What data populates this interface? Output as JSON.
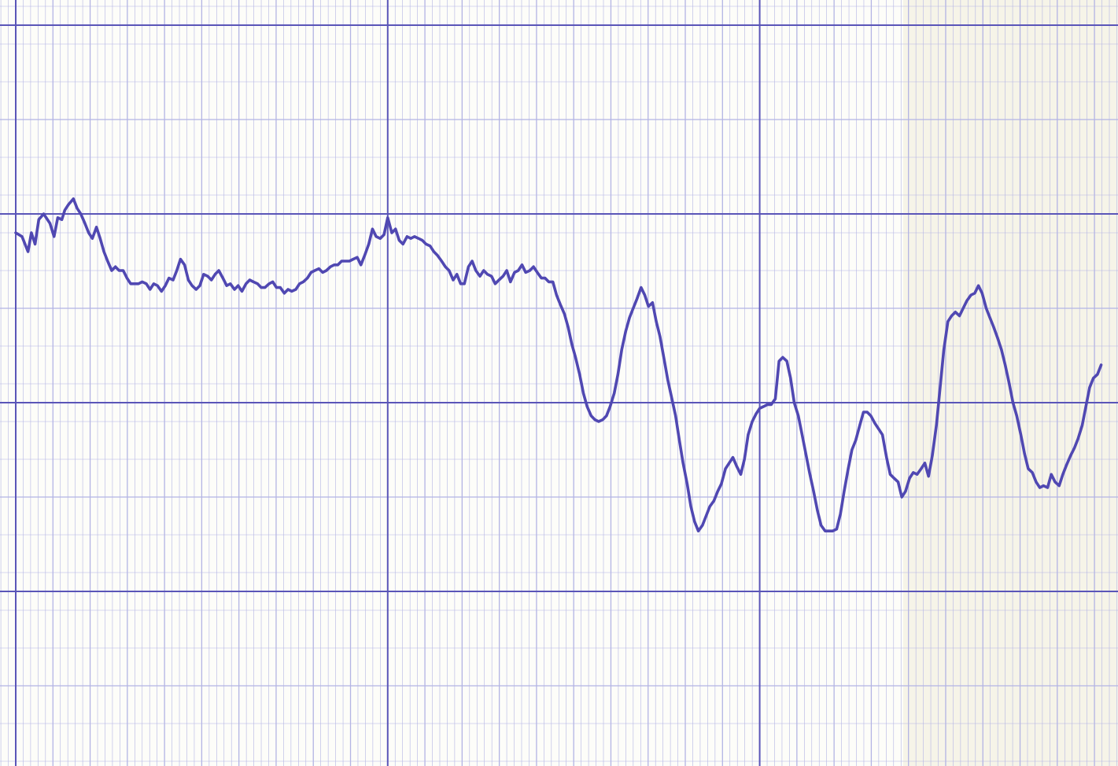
{
  "chart_data": {
    "type": "line",
    "title": "",
    "xlabel": "",
    "ylabel": "",
    "grid": true,
    "xlim": [
      0,
      29.4
    ],
    "ylim": [
      -3.9,
      0.1
    ],
    "colors": {
      "paper": "#fdfdf9",
      "paper_shaded": "#f6f4e8",
      "major_grid": "#5a55b8",
      "minor_grid": "#b3b4e4",
      "trace": "#5048b2"
    },
    "series": [
      {
        "values": [
          [
            0.0,
            -1.1
          ],
          [
            0.17,
            -1.12
          ],
          [
            0.33,
            -1.2
          ],
          [
            0.42,
            -1.1
          ],
          [
            0.52,
            -1.16
          ],
          [
            0.62,
            -1.03
          ],
          [
            0.75,
            -1.0
          ],
          [
            0.92,
            -1.05
          ],
          [
            1.03,
            -1.12
          ],
          [
            1.13,
            -1.02
          ],
          [
            1.24,
            -1.03
          ],
          [
            1.32,
            -0.98
          ],
          [
            1.42,
            -0.95
          ],
          [
            1.55,
            -0.92
          ],
          [
            1.65,
            -0.97
          ],
          [
            1.75,
            -1.0
          ],
          [
            1.86,
            -1.05
          ],
          [
            1.96,
            -1.1
          ],
          [
            2.06,
            -1.13
          ],
          [
            2.17,
            -1.07
          ],
          [
            2.27,
            -1.13
          ],
          [
            2.37,
            -1.2
          ],
          [
            2.47,
            -1.25
          ],
          [
            2.58,
            -1.3
          ],
          [
            2.68,
            -1.28
          ],
          [
            2.78,
            -1.3
          ],
          [
            2.89,
            -1.3
          ],
          [
            2.99,
            -1.34
          ],
          [
            3.09,
            -1.37
          ],
          [
            3.2,
            -1.37
          ],
          [
            3.3,
            -1.37
          ],
          [
            3.4,
            -1.36
          ],
          [
            3.51,
            -1.37
          ],
          [
            3.61,
            -1.4
          ],
          [
            3.71,
            -1.37
          ],
          [
            3.81,
            -1.38
          ],
          [
            3.92,
            -1.41
          ],
          [
            4.02,
            -1.38
          ],
          [
            4.12,
            -1.34
          ],
          [
            4.23,
            -1.35
          ],
          [
            4.33,
            -1.3
          ],
          [
            4.43,
            -1.24
          ],
          [
            4.54,
            -1.27
          ],
          [
            4.64,
            -1.35
          ],
          [
            4.74,
            -1.38
          ],
          [
            4.85,
            -1.4
          ],
          [
            4.95,
            -1.38
          ],
          [
            5.05,
            -1.32
          ],
          [
            5.16,
            -1.33
          ],
          [
            5.26,
            -1.35
          ],
          [
            5.36,
            -1.32
          ],
          [
            5.46,
            -1.3
          ],
          [
            5.57,
            -1.34
          ],
          [
            5.67,
            -1.38
          ],
          [
            5.77,
            -1.37
          ],
          [
            5.88,
            -1.4
          ],
          [
            5.98,
            -1.38
          ],
          [
            6.08,
            -1.41
          ],
          [
            6.19,
            -1.37
          ],
          [
            6.29,
            -1.35
          ],
          [
            6.39,
            -1.36
          ],
          [
            6.5,
            -1.37
          ],
          [
            6.6,
            -1.39
          ],
          [
            6.7,
            -1.39
          ],
          [
            6.81,
            -1.37
          ],
          [
            6.91,
            -1.36
          ],
          [
            7.01,
            -1.39
          ],
          [
            7.11,
            -1.39
          ],
          [
            7.22,
            -1.42
          ],
          [
            7.32,
            -1.4
          ],
          [
            7.42,
            -1.41
          ],
          [
            7.53,
            -1.4
          ],
          [
            7.63,
            -1.37
          ],
          [
            7.73,
            -1.36
          ],
          [
            7.84,
            -1.34
          ],
          [
            7.94,
            -1.31
          ],
          [
            8.04,
            -1.3
          ],
          [
            8.15,
            -1.29
          ],
          [
            8.25,
            -1.31
          ],
          [
            8.35,
            -1.3
          ],
          [
            8.46,
            -1.28
          ],
          [
            8.56,
            -1.27
          ],
          [
            8.66,
            -1.27
          ],
          [
            8.76,
            -1.25
          ],
          [
            8.87,
            -1.25
          ],
          [
            8.97,
            -1.25
          ],
          [
            9.07,
            -1.24
          ],
          [
            9.18,
            -1.23
          ],
          [
            9.28,
            -1.27
          ],
          [
            9.38,
            -1.22
          ],
          [
            9.49,
            -1.16
          ],
          [
            9.59,
            -1.08
          ],
          [
            9.69,
            -1.12
          ],
          [
            9.8,
            -1.13
          ],
          [
            9.9,
            -1.11
          ],
          [
            10.0,
            -1.02
          ],
          [
            10.11,
            -1.1
          ],
          [
            10.21,
            -1.08
          ],
          [
            10.31,
            -1.14
          ],
          [
            10.41,
            -1.16
          ],
          [
            10.52,
            -1.12
          ],
          [
            10.62,
            -1.13
          ],
          [
            10.72,
            -1.12
          ],
          [
            10.83,
            -1.13
          ],
          [
            10.93,
            -1.14
          ],
          [
            11.03,
            -1.16
          ],
          [
            11.14,
            -1.17
          ],
          [
            11.24,
            -1.2
          ],
          [
            11.34,
            -1.22
          ],
          [
            11.45,
            -1.25
          ],
          [
            11.55,
            -1.28
          ],
          [
            11.65,
            -1.3
          ],
          [
            11.76,
            -1.35
          ],
          [
            11.86,
            -1.32
          ],
          [
            11.96,
            -1.37
          ],
          [
            12.06,
            -1.37
          ],
          [
            12.17,
            -1.28
          ],
          [
            12.27,
            -1.25
          ],
          [
            12.37,
            -1.3
          ],
          [
            12.48,
            -1.33
          ],
          [
            12.58,
            -1.3
          ],
          [
            12.68,
            -1.32
          ],
          [
            12.79,
            -1.33
          ],
          [
            12.89,
            -1.37
          ],
          [
            12.99,
            -1.35
          ],
          [
            13.1,
            -1.33
          ],
          [
            13.2,
            -1.3
          ],
          [
            13.3,
            -1.36
          ],
          [
            13.41,
            -1.31
          ],
          [
            13.51,
            -1.3
          ],
          [
            13.61,
            -1.27
          ],
          [
            13.71,
            -1.31
          ],
          [
            13.82,
            -1.3
          ],
          [
            13.92,
            -1.28
          ],
          [
            14.02,
            -1.31
          ],
          [
            14.13,
            -1.34
          ],
          [
            14.23,
            -1.34
          ],
          [
            14.33,
            -1.36
          ],
          [
            14.44,
            -1.36
          ],
          [
            14.54,
            -1.43
          ],
          [
            14.64,
            -1.48
          ],
          [
            14.75,
            -1.53
          ],
          [
            14.85,
            -1.6
          ],
          [
            14.95,
            -1.69
          ],
          [
            15.05,
            -1.76
          ],
          [
            15.16,
            -1.85
          ],
          [
            15.26,
            -1.95
          ],
          [
            15.36,
            -2.02
          ],
          [
            15.47,
            -2.07
          ],
          [
            15.57,
            -2.09
          ],
          [
            15.67,
            -2.1
          ],
          [
            15.78,
            -2.09
          ],
          [
            15.88,
            -2.07
          ],
          [
            15.98,
            -2.02
          ],
          [
            16.09,
            -1.95
          ],
          [
            16.19,
            -1.85
          ],
          [
            16.29,
            -1.72
          ],
          [
            16.4,
            -1.62
          ],
          [
            16.5,
            -1.55
          ],
          [
            16.6,
            -1.5
          ],
          [
            16.7,
            -1.45
          ],
          [
            16.81,
            -1.39
          ],
          [
            16.91,
            -1.43
          ],
          [
            17.01,
            -1.49
          ],
          [
            17.12,
            -1.47
          ],
          [
            17.22,
            -1.57
          ],
          [
            17.32,
            -1.65
          ],
          [
            17.43,
            -1.77
          ],
          [
            17.53,
            -1.88
          ],
          [
            17.63,
            -1.97
          ],
          [
            17.74,
            -2.07
          ],
          [
            17.84,
            -2.2
          ],
          [
            17.94,
            -2.32
          ],
          [
            18.05,
            -2.43
          ],
          [
            18.15,
            -2.55
          ],
          [
            18.25,
            -2.63
          ],
          [
            18.35,
            -2.68
          ],
          [
            18.46,
            -2.65
          ],
          [
            18.56,
            -2.6
          ],
          [
            18.66,
            -2.55
          ],
          [
            18.77,
            -2.52
          ],
          [
            18.87,
            -2.47
          ],
          [
            18.97,
            -2.43
          ],
          [
            19.08,
            -2.35
          ],
          [
            19.18,
            -2.32
          ],
          [
            19.28,
            -2.29
          ],
          [
            19.39,
            -2.34
          ],
          [
            19.49,
            -2.38
          ],
          [
            19.59,
            -2.3
          ],
          [
            19.69,
            -2.17
          ],
          [
            19.8,
            -2.1
          ],
          [
            19.9,
            -2.06
          ],
          [
            20.0,
            -2.03
          ],
          [
            20.11,
            -2.02
          ],
          [
            20.21,
            -2.01
          ],
          [
            20.31,
            -2.01
          ],
          [
            20.42,
            -1.98
          ],
          [
            20.52,
            -1.78
          ],
          [
            20.62,
            -1.76
          ],
          [
            20.73,
            -1.78
          ],
          [
            20.83,
            -1.87
          ],
          [
            20.93,
            -2.0
          ],
          [
            21.04,
            -2.07
          ],
          [
            21.14,
            -2.17
          ],
          [
            21.24,
            -2.27
          ],
          [
            21.34,
            -2.37
          ],
          [
            21.45,
            -2.47
          ],
          [
            21.55,
            -2.57
          ],
          [
            21.65,
            -2.65
          ],
          [
            21.76,
            -2.68
          ],
          [
            21.86,
            -2.68
          ],
          [
            21.96,
            -2.68
          ],
          [
            22.07,
            -2.67
          ],
          [
            22.17,
            -2.59
          ],
          [
            22.27,
            -2.47
          ],
          [
            22.38,
            -2.35
          ],
          [
            22.48,
            -2.25
          ],
          [
            22.58,
            -2.2
          ],
          [
            22.69,
            -2.12
          ],
          [
            22.79,
            -2.05
          ],
          [
            22.89,
            -2.05
          ],
          [
            22.99,
            -2.07
          ],
          [
            23.1,
            -2.11
          ],
          [
            23.2,
            -2.14
          ],
          [
            23.3,
            -2.17
          ],
          [
            23.41,
            -2.29
          ],
          [
            23.51,
            -2.38
          ],
          [
            23.61,
            -2.4
          ],
          [
            23.72,
            -2.42
          ],
          [
            23.82,
            -2.5
          ],
          [
            23.92,
            -2.47
          ],
          [
            24.03,
            -2.4
          ],
          [
            24.13,
            -2.37
          ],
          [
            24.23,
            -2.38
          ],
          [
            24.34,
            -2.35
          ],
          [
            24.44,
            -2.32
          ],
          [
            24.54,
            -2.39
          ],
          [
            24.64,
            -2.28
          ],
          [
            24.75,
            -2.12
          ],
          [
            24.85,
            -1.92
          ],
          [
            24.95,
            -1.72
          ],
          [
            25.06,
            -1.57
          ],
          [
            25.16,
            -1.54
          ],
          [
            25.26,
            -1.52
          ],
          [
            25.37,
            -1.54
          ],
          [
            25.47,
            -1.5
          ],
          [
            25.57,
            -1.46
          ],
          [
            25.68,
            -1.43
          ],
          [
            25.78,
            -1.42
          ],
          [
            25.88,
            -1.38
          ],
          [
            25.98,
            -1.42
          ],
          [
            26.09,
            -1.5
          ],
          [
            26.19,
            -1.55
          ],
          [
            26.29,
            -1.6
          ],
          [
            26.4,
            -1.66
          ],
          [
            26.5,
            -1.72
          ],
          [
            26.6,
            -1.8
          ],
          [
            26.71,
            -1.9
          ],
          [
            26.81,
            -2.0
          ],
          [
            26.91,
            -2.07
          ],
          [
            27.02,
            -2.17
          ],
          [
            27.12,
            -2.27
          ],
          [
            27.22,
            -2.35
          ],
          [
            27.33,
            -2.37
          ],
          [
            27.43,
            -2.42
          ],
          [
            27.53,
            -2.45
          ],
          [
            27.63,
            -2.44
          ],
          [
            27.74,
            -2.45
          ],
          [
            27.84,
            -2.38
          ],
          [
            27.94,
            -2.42
          ],
          [
            28.05,
            -2.44
          ],
          [
            28.15,
            -2.38
          ],
          [
            28.25,
            -2.33
          ],
          [
            28.36,
            -2.28
          ],
          [
            28.46,
            -2.24
          ],
          [
            28.56,
            -2.19
          ],
          [
            28.67,
            -2.12
          ],
          [
            28.77,
            -2.02
          ],
          [
            28.87,
            -1.92
          ],
          [
            28.97,
            -1.87
          ],
          [
            29.08,
            -1.85
          ],
          [
            29.18,
            -1.8
          ]
        ]
      }
    ]
  }
}
